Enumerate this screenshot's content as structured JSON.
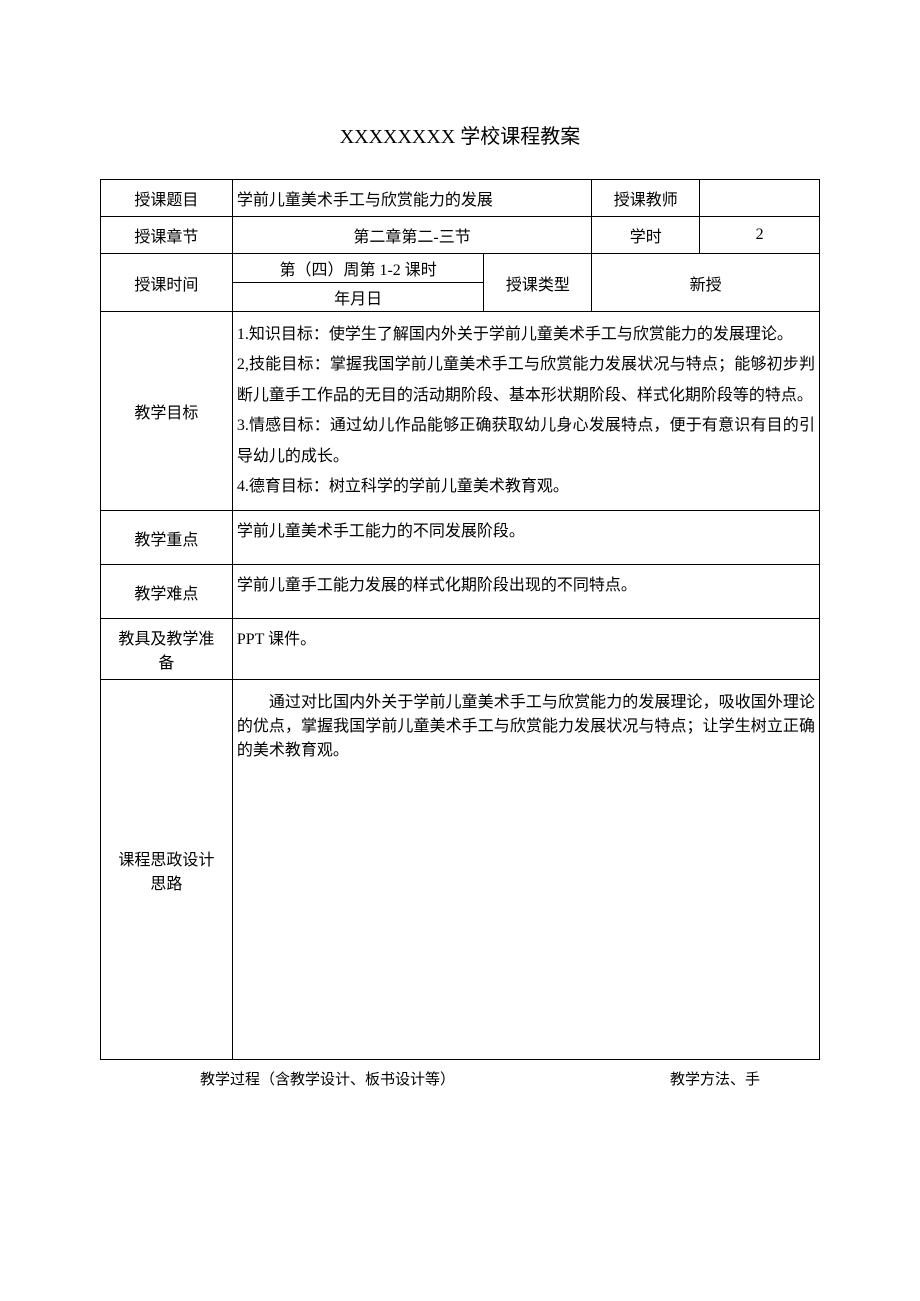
{
  "title": "XXXXXXXX 学校课程教案",
  "rows": {
    "topic_label": "授课题目",
    "topic_value": "学前儿童美术手工与欣赏能力的发展",
    "teacher_label": "授课教师",
    "teacher_value": "",
    "chapter_label": "授课章节",
    "chapter_value": "第二章第二-三节",
    "hours_label": "学时",
    "hours_value": "2",
    "time_label": "授课时间",
    "time_line1": "第（四）周第 1-2 课时",
    "time_line2": "年月日",
    "type_label": "授课类型",
    "type_value": "新授",
    "objectives_label": "教学目标",
    "objectives_text": "1.知识目标：使学生了解国内外关于学前儿童美术手工与欣赏能力的发展理论。\n2,技能目标：掌握我国学前儿童美术手工与欣赏能力发展状况与特点；能够初步判断儿童手工作品的无目的活动期阶段、基本形状期阶段、样式化期阶段等的特点。\n3.情感目标：通过幼儿作品能够正确获取幼儿身心发展特点，便于有意识有目的引导幼儿的成长。\n4.德育目标：树立科学的学前儿童美术教育观。",
    "keypoint_label": "教学重点",
    "keypoint_value": "学前儿童美术手工能力的不同发展阶段。",
    "difficulty_label": "教学难点",
    "difficulty_value": "学前儿童手工能力发展的样式化期阶段出现的不同特点。",
    "tools_label": "教具及教学准备",
    "tools_value": "PPT 课件。",
    "ideology_label": "课程思政设计思路",
    "ideology_value": "通过对比国内外关于学前儿童美术手工与欣赏能力的发展理论，吸收国外理论的优点，掌握我国学前儿童美术手工与欣赏能力发展状况与特点；让学生树立正确的美术教育观。"
  },
  "footer": {
    "left": "教学过程（含教学设计、板书设计等）",
    "right": "教学方法、手"
  }
}
